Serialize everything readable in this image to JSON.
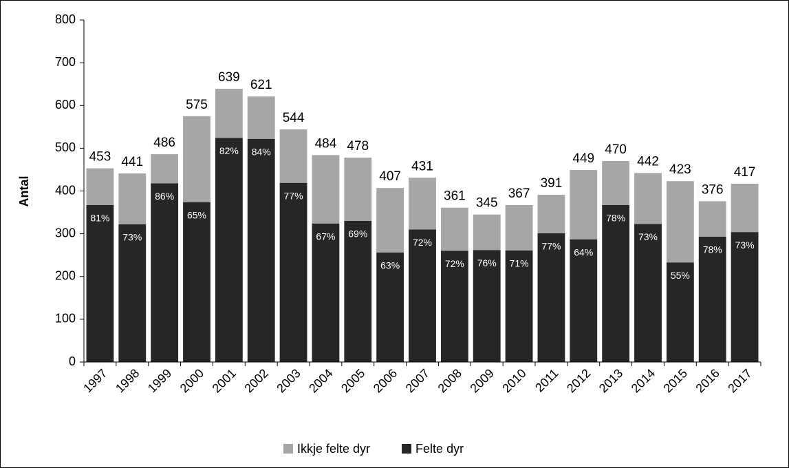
{
  "chart_data": {
    "type": "stacked_bar",
    "ylabel": "Antal",
    "categories": [
      "1997",
      "1998",
      "1999",
      "2000",
      "2001",
      "2002",
      "2003",
      "2004",
      "2005",
      "2006",
      "2007",
      "2008",
      "2009",
      "2010",
      "2011",
      "2012",
      "2013",
      "2014",
      "2015",
      "2016",
      "2017"
    ],
    "series": [
      {
        "name": "Felte dyr",
        "color": "#262626",
        "values": [
          367,
          322,
          418,
          374,
          524,
          522,
          419,
          324,
          330,
          256,
          310,
          260,
          262,
          261,
          301,
          287,
          367,
          323,
          233,
          293,
          304
        ],
        "value_labels": [
          "81%",
          "73%",
          "86%",
          "65%",
          "82%",
          "84%",
          "77%",
          "67%",
          "69%",
          "63%",
          "72%",
          "72%",
          "76%",
          "71%",
          "77%",
          "64%",
          "78%",
          "73%",
          "55%",
          "78%",
          "73%"
        ]
      },
      {
        "name": "Ikkje felte dyr",
        "color": "#a6a6a6",
        "values": [
          86,
          119,
          68,
          201,
          115,
          99,
          125,
          160,
          148,
          151,
          121,
          101,
          83,
          106,
          90,
          162,
          103,
          119,
          190,
          83,
          113
        ]
      }
    ],
    "totals": [
      453,
      441,
      486,
      575,
      639,
      621,
      544,
      484,
      478,
      407,
      431,
      361,
      345,
      367,
      391,
      449,
      470,
      442,
      423,
      376,
      417
    ],
    "ylim": [
      0,
      800
    ],
    "yticks": [
      0,
      100,
      200,
      300,
      400,
      500,
      600,
      700,
      800
    ],
    "grid": false,
    "legend": "bottom"
  }
}
